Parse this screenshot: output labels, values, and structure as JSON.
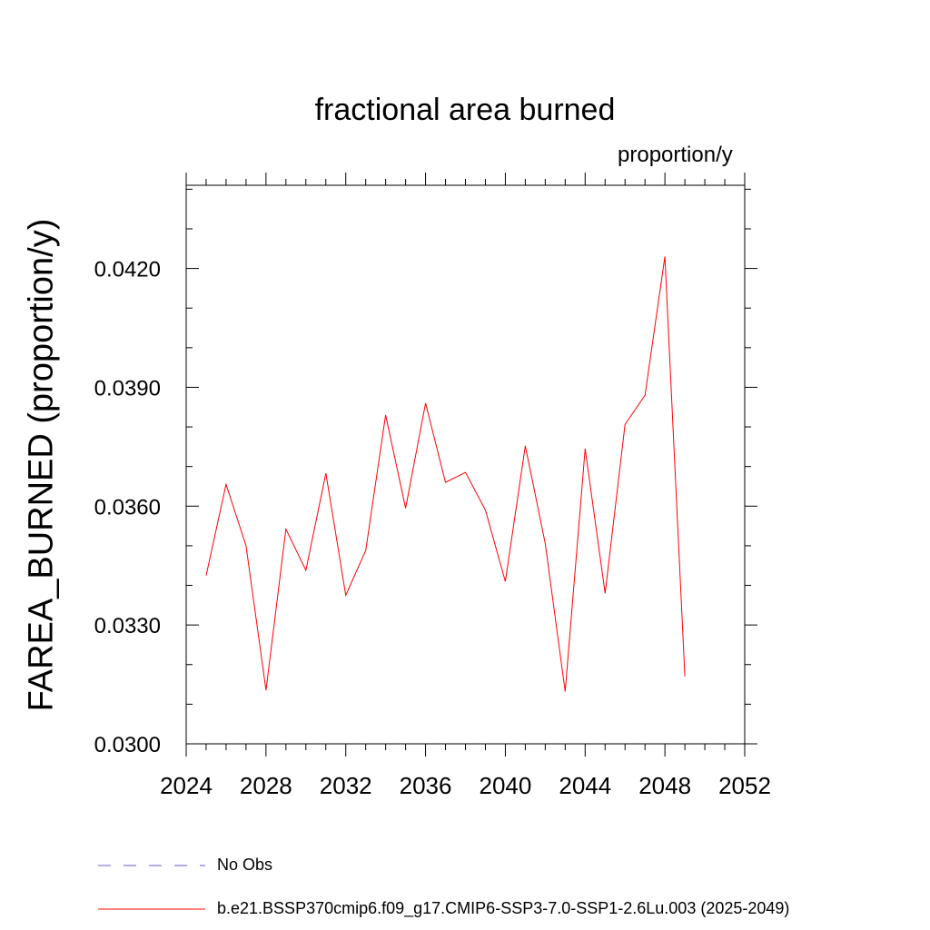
{
  "chart_data": {
    "type": "line",
    "title": "fractional area burned",
    "units_label": "proportion/y",
    "ylabel": "FAREA_BURNED  (proportion/y)",
    "xlabel": "",
    "xlim": [
      2024,
      2052
    ],
    "ylim": [
      0.03,
      0.0441
    ],
    "x_ticks": [
      2024,
      2028,
      2032,
      2036,
      2040,
      2044,
      2048,
      2052
    ],
    "x_tick_labels": [
      "2024",
      "2028",
      "2032",
      "2036",
      "2040",
      "2044",
      "2048",
      "2052"
    ],
    "y_ticks": [
      0.03,
      0.033,
      0.036,
      0.039,
      0.042
    ],
    "y_tick_labels": [
      "0.0300",
      "0.0330",
      "0.0360",
      "0.0390",
      "0.0420"
    ],
    "series": [
      {
        "name": "b.e21.BSSP370cmip6.f09_g17.CMIP6-SSP3-7.0-SSP1-2.6Lu.003 (2025-2049)",
        "color": "#ff0000",
        "x": [
          2025,
          2026,
          2027,
          2028,
          2029,
          2030,
          2031,
          2032,
          2033,
          2034,
          2035,
          2036,
          2037,
          2038,
          2039,
          2040,
          2041,
          2042,
          2043,
          2044,
          2045,
          2046,
          2047,
          2048,
          2049
        ],
        "y": [
          0.03425,
          0.03655,
          0.035,
          0.03135,
          0.03542,
          0.03438,
          0.03683,
          0.03375,
          0.03488,
          0.0383,
          0.03595,
          0.0386,
          0.0366,
          0.03685,
          0.0359,
          0.0341,
          0.03752,
          0.03505,
          0.03132,
          0.03745,
          0.0338,
          0.03806,
          0.0388,
          0.0423,
          0.0317
        ]
      }
    ],
    "legend": [
      {
        "label": "No Obs",
        "color": "#6a5acd",
        "style": "dashed"
      },
      {
        "label": "b.e21.BSSP370cmip6.f09_g17.CMIP6-SSP3-7.0-SSP1-2.6Lu.003 (2025-2049)",
        "color": "#ff0000",
        "style": "solid"
      }
    ]
  }
}
